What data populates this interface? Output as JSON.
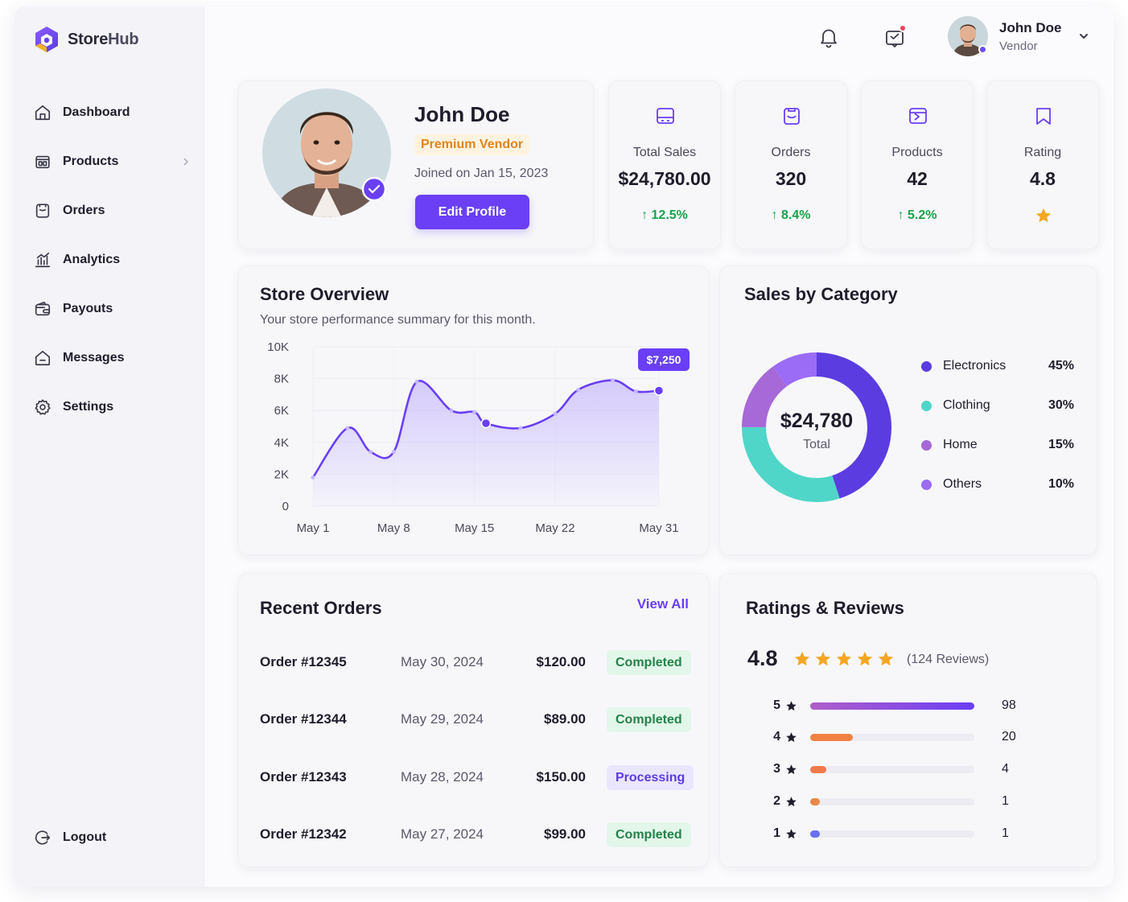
{
  "brand": {
    "name_a": "Store",
    "name_b": "Hub"
  },
  "sidebar": {
    "items": [
      {
        "label": "Dashboard",
        "icon": "home-icon"
      },
      {
        "label": "Products",
        "icon": "box-icon"
      },
      {
        "label": "Orders",
        "icon": "orders-icon"
      },
      {
        "label": "Analytics",
        "icon": "analytics-icon"
      },
      {
        "label": "Payouts",
        "icon": "wallet-icon"
      },
      {
        "label": "Messages",
        "icon": "message-icon"
      },
      {
        "label": "Settings",
        "icon": "gear-icon"
      }
    ],
    "logout": "Logout"
  },
  "header": {
    "user_name": "John Doe",
    "user_role": "Vendor"
  },
  "profile": {
    "name": "John Doe",
    "badge": "Premium Vendor",
    "joined": "Joined on Jan 15, 2023",
    "edit_button": "Edit Profile"
  },
  "stats": [
    {
      "label": "Total Sales",
      "value": "$24,780.00",
      "change": "12.5%"
    },
    {
      "label": "Orders",
      "value": "320",
      "change": "8.4%"
    },
    {
      "label": "Products",
      "value": "42",
      "change": "5.2%"
    },
    {
      "label": "Rating",
      "value": "4.8"
    }
  ],
  "overview": {
    "title": "Store Overview",
    "subtitle": "Your store performance summary for this month."
  },
  "chart_data": {
    "type": "area",
    "x": [
      "May 1",
      "May 4",
      "May 6",
      "May 8",
      "May 10",
      "May 13",
      "May 15",
      "May 16",
      "May 19",
      "May 22",
      "May 24",
      "May 27",
      "May 29",
      "May 31"
    ],
    "y": [
      1800,
      4900,
      3400,
      3400,
      7800,
      6000,
      5900,
      5200,
      4900,
      5800,
      7300,
      7900,
      7200,
      7250
    ],
    "x_ticks": [
      "May 1",
      "May 8",
      "May 15",
      "May 22",
      "May 31"
    ],
    "y_ticks": [
      "0",
      "2K",
      "4K",
      "6K",
      "8K",
      "10K"
    ],
    "ylim": [
      0,
      10000
    ],
    "callout": "$7,250",
    "colors": {
      "line": "#6a3ff5",
      "fill": "#b9a6ff"
    }
  },
  "category": {
    "title": "Sales by Category",
    "total": "$24,780",
    "total_label": "Total",
    "slices": [
      {
        "name": "Electronics",
        "pct": "45%",
        "value": 45,
        "color": "#5b3ce0"
      },
      {
        "name": "Clothing",
        "pct": "30%",
        "value": 30,
        "color": "#4fd6c8"
      },
      {
        "name": "Home",
        "pct": "15%",
        "value": 15,
        "color": "#a768d8"
      },
      {
        "name": "Others",
        "pct": "10%",
        "value": 10,
        "color": "#9b6cf5"
      }
    ]
  },
  "orders": {
    "title": "Recent Orders",
    "view_all": "View All",
    "rows": [
      {
        "id": "Order #12345",
        "date": "May 30, 2024",
        "amount": "$120.00",
        "status": "Completed"
      },
      {
        "id": "Order #12344",
        "date": "May 29, 2024",
        "amount": "$89.00",
        "status": "Completed"
      },
      {
        "id": "Order #12343",
        "date": "May 28, 2024",
        "amount": "$150.00",
        "status": "Processing"
      },
      {
        "id": "Order #12342",
        "date": "May 27, 2024",
        "amount": "$99.00",
        "status": "Completed"
      }
    ]
  },
  "ratings": {
    "title": "Ratings & Reviews",
    "average": "4.8",
    "reviews": "(124 Reviews)",
    "bars": [
      {
        "star": "5",
        "count": "98",
        "fraction": 1.0,
        "color": "#7b4cf0"
      },
      {
        "star": "4",
        "count": "20",
        "fraction": 0.26,
        "color": "#f08243"
      },
      {
        "star": "3",
        "count": "4",
        "fraction": 0.1,
        "color": "#f07a4a"
      },
      {
        "star": "2",
        "count": "1",
        "fraction": 0.06,
        "color": "#e8894a"
      },
      {
        "star": "1",
        "count": "1",
        "fraction": 0.06,
        "color": "#6b6ff0"
      }
    ]
  }
}
